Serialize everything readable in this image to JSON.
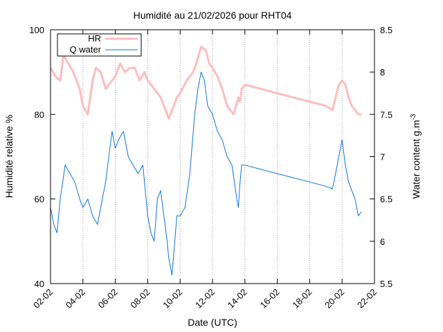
{
  "chart_data": {
    "type": "line",
    "title": "Humidité au 21/02/2026 pour RHT04",
    "xlabel": "Date (UTC)",
    "ylabel_left": "Humidité relative %",
    "ylabel_right_base": "Water content g.m",
    "ylabel_right_sup": "-3",
    "x_ticks": [
      "02-02",
      "04-02",
      "06-02",
      "08-02",
      "10-02",
      "12-02",
      "14-02",
      "16-02",
      "18-02",
      "20-02",
      "22-02"
    ],
    "x_range_days": [
      2,
      22
    ],
    "y_left": {
      "range": [
        40,
        100
      ],
      "ticks": [
        "40",
        "60",
        "80",
        "100"
      ]
    },
    "y_right": {
      "range": [
        5.5,
        8.5
      ],
      "ticks": [
        "5.5",
        "6",
        "6.5",
        "7",
        "7.5",
        "8",
        "8.5"
      ]
    },
    "grid": "x-dotted",
    "legend_position": "top-left",
    "series": [
      {
        "name": "HR",
        "axis": "left",
        "color": "#ffbcbc",
        "x": [
          2.0,
          2.3,
          2.6,
          2.8,
          3.1,
          3.4,
          3.8,
          4.0,
          4.3,
          4.6,
          4.8,
          5.1,
          5.4,
          5.8,
          6.0,
          6.3,
          6.6,
          6.9,
          7.2,
          7.5,
          7.8,
          8.0,
          8.4,
          8.8,
          9.0,
          9.3,
          9.6,
          9.8,
          10.0,
          10.4,
          10.8,
          11.0,
          11.3,
          11.6,
          11.8,
          12.0,
          12.3,
          12.6,
          12.9,
          13.3,
          13.6,
          13.7,
          13.8,
          14.0,
          15.0,
          16.0,
          17.0,
          18.0,
          19.0,
          19.4,
          19.6,
          19.8,
          20.0,
          20.2,
          20.4,
          20.6,
          20.8,
          21.0,
          21.2
        ],
        "y": [
          91,
          89,
          88,
          94,
          92,
          90,
          86,
          82,
          80,
          88,
          91,
          90,
          86,
          88,
          89,
          92,
          90,
          91,
          91,
          88,
          90,
          88,
          86,
          84,
          82,
          79,
          82,
          84,
          85,
          88,
          90,
          92,
          96,
          95,
          92,
          91,
          89,
          86,
          82,
          80,
          84,
          83,
          86,
          87,
          86,
          85,
          84,
          83,
          82,
          81,
          84,
          87,
          88,
          87,
          84,
          82,
          81,
          80,
          80
        ]
      },
      {
        "name": "Q water",
        "axis": "right",
        "color": "#0a74d8",
        "x": [
          2.0,
          2.2,
          2.4,
          2.6,
          2.9,
          3.2,
          3.5,
          3.8,
          4.0,
          4.3,
          4.6,
          4.9,
          5.1,
          5.4,
          5.6,
          5.8,
          6.0,
          6.2,
          6.5,
          6.8,
          7.1,
          7.4,
          7.7,
          8.0,
          8.2,
          8.4,
          8.6,
          8.8,
          9.0,
          9.2,
          9.3,
          9.5,
          9.8,
          10.0,
          10.3,
          10.6,
          10.9,
          11.1,
          11.3,
          11.5,
          11.7,
          12.0,
          12.3,
          12.6,
          12.9,
          13.2,
          13.5,
          13.6,
          13.7,
          13.8,
          14.0,
          15.0,
          16.0,
          17.0,
          18.0,
          19.0,
          19.4,
          19.6,
          19.8,
          20.0,
          20.2,
          20.4,
          20.6,
          20.8,
          21.0,
          21.2
        ],
        "y": [
          6.4,
          6.2,
          6.1,
          6.5,
          6.9,
          6.8,
          6.7,
          6.5,
          6.4,
          6.5,
          6.3,
          6.2,
          6.4,
          6.7,
          7.0,
          7.3,
          7.1,
          7.2,
          7.3,
          7.0,
          6.9,
          6.8,
          6.9,
          6.3,
          6.1,
          6.0,
          6.5,
          6.6,
          6.3,
          6.0,
          5.8,
          5.6,
          6.3,
          6.3,
          6.4,
          6.8,
          7.5,
          7.8,
          8.0,
          7.9,
          7.6,
          7.5,
          7.3,
          7.2,
          7.0,
          6.9,
          6.5,
          6.4,
          6.7,
          6.9,
          6.9,
          6.85,
          6.8,
          6.75,
          6.7,
          6.65,
          6.62,
          6.8,
          7.0,
          7.2,
          6.9,
          6.7,
          6.6,
          6.5,
          6.3,
          6.35
        ]
      }
    ]
  }
}
